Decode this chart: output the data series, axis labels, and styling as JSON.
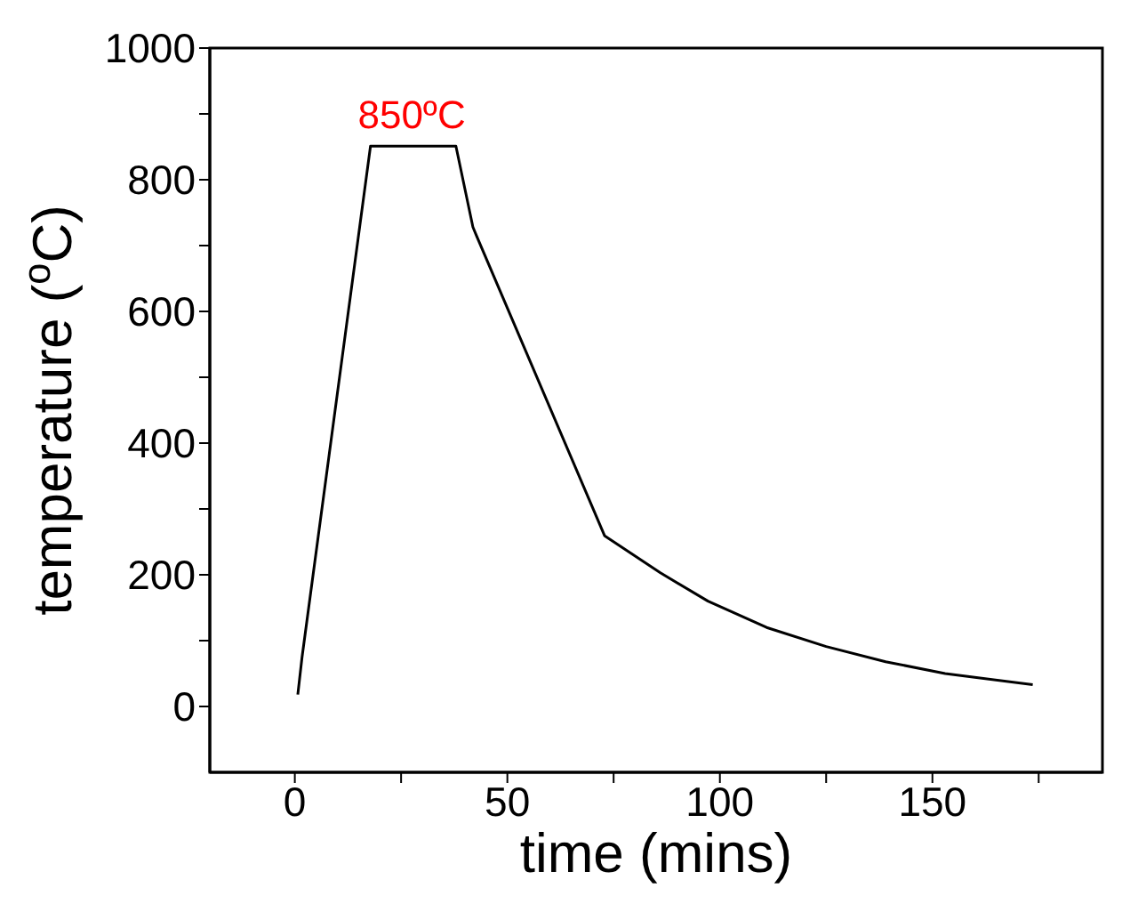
{
  "chart_data": {
    "type": "line",
    "xlabel": "time (mins)",
    "ylabel": "temperature ($^{o}$C)",
    "x": [
      0.7,
      1.7,
      17.8,
      37.9,
      41.9,
      42.8,
      72.9,
      86,
      97.2,
      111,
      125,
      139,
      153,
      173.6
    ],
    "series": [
      {
        "color": "#000000",
        "values": [
          18,
          75,
          851,
          851,
          728,
          714,
          259,
          203,
          160,
          120,
          91,
          68,
          50,
          33
        ]
      }
    ],
    "xlim": [
      -20,
      190
    ],
    "ylim": [
      -100,
      1000
    ],
    "xticks": [
      0,
      {
        "value": 25,
        "label": null
      },
      50,
      {
        "value": 75,
        "label": null
      },
      100,
      {
        "value": 125,
        "label": null
      },
      150,
      {
        "value": 175,
        "label": null
      }
    ],
    "yticks": [
      0,
      {
        "value": 100,
        "label": null
      },
      200,
      {
        "value": 300,
        "label": null
      },
      400,
      {
        "value": 500,
        "label": null
      },
      600,
      {
        "value": 700,
        "label": null
      },
      800,
      {
        "value": 900,
        "label": null
      },
      1000
    ],
    "annotations": [
      {
        "text": "850ºC",
        "x": 27.5,
        "y": 851
      }
    ],
    "grid": false,
    "marker": "none",
    "line_style": "solid"
  }
}
